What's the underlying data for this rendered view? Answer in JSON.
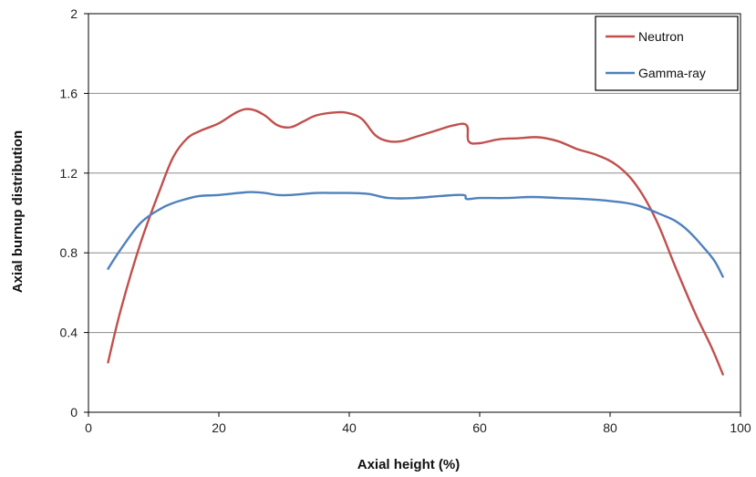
{
  "chart_data": {
    "type": "line",
    "title": "",
    "xlabel": "Axial height (%)",
    "ylabel": "Axial burnup distribution",
    "xlim": [
      0,
      100
    ],
    "ylim": [
      0,
      2
    ],
    "xticks": [
      0,
      20,
      40,
      60,
      80,
      100
    ],
    "xtick_labels": [
      "0",
      "20",
      "40",
      "60",
      "80",
      "100"
    ],
    "yticks": [
      0,
      0.4,
      0.8,
      1.2,
      1.6,
      2
    ],
    "ytick_labels": [
      "0",
      "0.4",
      "0.8",
      "1.2",
      "1.6",
      "2"
    ],
    "grid": "horizontal",
    "legend_position": "top-right",
    "series": [
      {
        "name": "Neutron",
        "color": "#c0504d",
        "x": [
          3,
          5,
          8,
          11,
          13,
          15,
          17,
          20,
          23,
          25,
          27,
          29,
          31,
          33,
          35,
          38,
          40,
          42,
          44,
          46,
          48,
          50,
          53,
          56,
          58,
          58.3,
          60,
          63,
          66,
          69,
          72,
          75,
          78,
          81,
          84,
          87,
          90,
          93,
          95.5,
          97.3
        ],
        "y": [
          0.25,
          0.52,
          0.85,
          1.12,
          1.28,
          1.37,
          1.41,
          1.45,
          1.51,
          1.52,
          1.49,
          1.44,
          1.43,
          1.46,
          1.49,
          1.505,
          1.5,
          1.47,
          1.39,
          1.36,
          1.36,
          1.38,
          1.41,
          1.44,
          1.44,
          1.36,
          1.35,
          1.37,
          1.375,
          1.38,
          1.36,
          1.32,
          1.29,
          1.24,
          1.14,
          0.97,
          0.73,
          0.5,
          0.33,
          0.19
        ]
      },
      {
        "name": "Gamma-ray",
        "color": "#4f81bd",
        "x": [
          3,
          5,
          8,
          11,
          13,
          15,
          17,
          20,
          23,
          25,
          27,
          29,
          31,
          35,
          38,
          40,
          43,
          46,
          50,
          54,
          57.5,
          58,
          60,
          64,
          68,
          72,
          76,
          80,
          84,
          88,
          90,
          92,
          94,
          96,
          97.3
        ],
        "y": [
          0.72,
          0.82,
          0.95,
          1.02,
          1.05,
          1.07,
          1.085,
          1.09,
          1.1,
          1.105,
          1.1,
          1.09,
          1.09,
          1.1,
          1.1,
          1.1,
          1.095,
          1.075,
          1.075,
          1.085,
          1.09,
          1.07,
          1.075,
          1.075,
          1.08,
          1.075,
          1.07,
          1.06,
          1.04,
          0.99,
          0.96,
          0.91,
          0.84,
          0.76,
          0.68
        ]
      }
    ]
  }
}
